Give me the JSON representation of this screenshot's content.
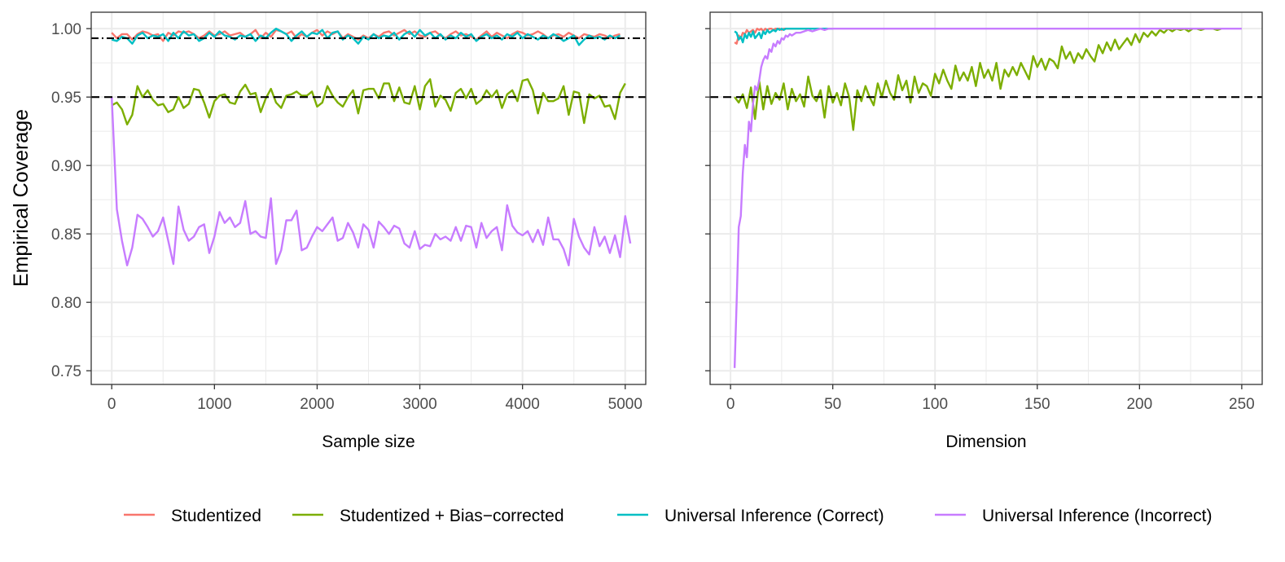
{
  "figure": {
    "ylabel": "Empirical Coverage",
    "colors": {
      "studentized": "#F8766D",
      "bias_corrected": "#7CAE00",
      "ui_correct": "#00BFC4",
      "ui_incorrect": "#C77CFF",
      "reference": "#000000",
      "grid": "#ebebeb",
      "panel_border": "#333333"
    }
  },
  "legend": {
    "position": "bottom",
    "entries": [
      {
        "key": "studentized",
        "label": "Studentized",
        "color": "#F8766D"
      },
      {
        "key": "bias_corrected",
        "label": "Studentized + Bias−corrected",
        "color": "#7CAE00"
      },
      {
        "key": "ui_correct",
        "label": "Universal Inference (Correct)",
        "color": "#00BFC4"
      },
      {
        "key": "ui_incorrect",
        "label": "Universal Inference (Incorrect)",
        "color": "#C77CFF"
      }
    ]
  },
  "chart_data": [
    {
      "type": "line",
      "xlabel": "Sample size",
      "ylabel": "Empirical Coverage",
      "xlim": [
        -200,
        5200
      ],
      "ylim": [
        0.74,
        1.012
      ],
      "xticks": [
        0,
        1000,
        2000,
        3000,
        4000,
        5000
      ],
      "yticks": [
        0.75,
        0.8,
        0.85,
        0.9,
        0.95,
        1.0
      ],
      "ytick_labels": [
        "0.75",
        "0.80",
        "0.85",
        "0.90",
        "0.95",
        "1.00"
      ],
      "grid": true,
      "reference_lines": [
        {
          "y": 0.95,
          "style": "dashed"
        },
        {
          "y": 0.993,
          "style": "dashdot"
        }
      ],
      "x_start": 0,
      "x_step": 50,
      "series": [
        {
          "key": "studentized",
          "values": [
            0.997,
            0.993,
            0.996,
            0.996,
            0.992,
            0.996,
            0.998,
            0.997,
            0.995,
            0.996,
            0.991,
            0.997,
            0.995,
            0.998,
            0.997,
            0.998,
            0.996,
            0.993,
            0.995,
            0.998,
            0.995,
            0.996,
            0.998,
            0.995,
            0.996,
            0.997,
            0.994,
            0.996,
            0.999,
            0.993,
            0.997,
            0.994,
            0.999,
            0.998,
            0.996,
            0.998,
            0.993,
            0.996,
            0.994,
            0.997,
            0.999,
            0.995,
            0.998,
            0.996,
            0.998,
            0.993,
            0.996,
            0.994,
            0.992,
            0.995,
            0.993,
            0.996,
            0.994,
            0.997,
            0.998,
            0.995,
            0.997,
            0.999,
            0.996,
            0.998,
            0.995,
            0.994,
            0.997,
            0.998,
            0.995,
            0.993,
            0.996,
            0.998,
            0.995,
            0.996,
            0.994,
            0.992,
            0.995,
            0.998,
            0.994,
            0.997,
            0.995,
            0.993,
            0.996,
            0.998,
            0.997,
            0.995,
            0.996,
            0.998,
            0.996,
            0.993,
            0.995,
            0.996,
            0.994,
            0.997,
            0.995,
            0.993,
            0.996,
            0.995,
            0.994,
            0.996,
            0.995,
            0.993,
            0.995,
            0.996
          ]
        },
        {
          "key": "bias_corrected",
          "values": [
            0.944,
            0.946,
            0.941,
            0.93,
            0.937,
            0.958,
            0.95,
            0.955,
            0.948,
            0.944,
            0.945,
            0.939,
            0.941,
            0.95,
            0.942,
            0.945,
            0.956,
            0.955,
            0.946,
            0.935,
            0.947,
            0.951,
            0.952,
            0.946,
            0.945,
            0.954,
            0.959,
            0.952,
            0.953,
            0.939,
            0.949,
            0.956,
            0.946,
            0.942,
            0.951,
            0.952,
            0.954,
            0.951,
            0.951,
            0.954,
            0.943,
            0.946,
            0.958,
            0.951,
            0.946,
            0.943,
            0.95,
            0.955,
            0.938,
            0.955,
            0.956,
            0.956,
            0.949,
            0.96,
            0.96,
            0.947,
            0.957,
            0.946,
            0.945,
            0.958,
            0.941,
            0.958,
            0.963,
            0.943,
            0.951,
            0.948,
            0.94,
            0.953,
            0.956,
            0.949,
            0.956,
            0.945,
            0.948,
            0.955,
            0.95,
            0.955,
            0.942,
            0.952,
            0.955,
            0.947,
            0.962,
            0.963,
            0.955,
            0.938,
            0.953,
            0.947,
            0.947,
            0.949,
            0.958,
            0.937,
            0.954,
            0.953,
            0.931,
            0.952,
            0.949,
            0.951,
            0.943,
            0.944,
            0.934,
            0.953,
            0.96
          ]
        },
        {
          "key": "ui_correct",
          "values": [
            0.992,
            0.991,
            0.994,
            0.993,
            0.989,
            0.995,
            0.997,
            0.993,
            0.995,
            0.994,
            0.996,
            0.991,
            0.997,
            0.993,
            0.998,
            0.995,
            0.996,
            0.991,
            0.993,
            0.997,
            0.994,
            0.998,
            0.995,
            0.994,
            0.992,
            0.995,
            0.994,
            0.996,
            0.991,
            0.995,
            0.993,
            0.997,
            1.0,
            0.998,
            0.996,
            0.991,
            0.995,
            0.998,
            0.994,
            0.997,
            0.996,
            0.999,
            0.993,
            0.997,
            0.998,
            0.992,
            0.995,
            0.993,
            0.989,
            0.994,
            0.992,
            0.996,
            0.993,
            0.995,
            0.994,
            0.997,
            0.992,
            0.996,
            0.998,
            0.994,
            0.999,
            0.995,
            0.997,
            0.993,
            0.996,
            0.992,
            0.995,
            0.993,
            0.997,
            0.994,
            0.996,
            0.991,
            0.994,
            0.996,
            0.993,
            0.995,
            0.992,
            0.996,
            0.994,
            0.997,
            0.993,
            0.996,
            0.994,
            0.992,
            0.995,
            0.993,
            0.996,
            0.994,
            0.991,
            0.993,
            0.995,
            0.988,
            0.992,
            0.995,
            0.993,
            0.994,
            0.992,
            0.995,
            0.993,
            0.995
          ]
        },
        {
          "key": "ui_incorrect",
          "values": [
            0.95,
            0.868,
            0.845,
            0.827,
            0.84,
            0.864,
            0.861,
            0.855,
            0.848,
            0.852,
            0.862,
            0.845,
            0.828,
            0.87,
            0.853,
            0.845,
            0.848,
            0.855,
            0.857,
            0.836,
            0.848,
            0.866,
            0.858,
            0.862,
            0.855,
            0.858,
            0.874,
            0.85,
            0.852,
            0.848,
            0.847,
            0.876,
            0.828,
            0.838,
            0.86,
            0.86,
            0.867,
            0.838,
            0.84,
            0.848,
            0.855,
            0.852,
            0.857,
            0.862,
            0.845,
            0.847,
            0.858,
            0.851,
            0.84,
            0.857,
            0.853,
            0.84,
            0.859,
            0.855,
            0.85,
            0.856,
            0.854,
            0.843,
            0.84,
            0.852,
            0.839,
            0.842,
            0.841,
            0.85,
            0.846,
            0.848,
            0.845,
            0.855,
            0.845,
            0.856,
            0.855,
            0.84,
            0.858,
            0.847,
            0.852,
            0.855,
            0.838,
            0.871,
            0.856,
            0.851,
            0.849,
            0.852,
            0.844,
            0.853,
            0.842,
            0.862,
            0.846,
            0.846,
            0.839,
            0.827,
            0.861,
            0.848,
            0.84,
            0.835,
            0.855,
            0.841,
            0.848,
            0.836,
            0.849,
            0.833,
            0.863,
            0.843
          ]
        }
      ]
    },
    {
      "type": "line",
      "xlabel": "Dimension",
      "ylabel": "Empirical Coverage",
      "xlim": [
        -10,
        260
      ],
      "ylim": [
        0.74,
        1.012
      ],
      "xticks": [
        0,
        50,
        100,
        150,
        200,
        250
      ],
      "yticks": [
        0.75,
        0.8,
        0.85,
        0.9,
        0.95,
        1.0
      ],
      "ytick_labels": [],
      "grid": true,
      "reference_lines": [
        {
          "y": 0.95,
          "style": "dashed"
        }
      ],
      "series": [
        {
          "key": "studentized",
          "x": [
            2,
            3,
            4,
            5,
            6,
            7,
            8,
            9,
            10,
            11,
            12,
            13,
            14,
            15,
            16,
            17,
            18,
            19,
            20,
            21,
            22,
            23,
            24,
            25,
            26,
            27,
            28,
            29,
            30,
            32,
            34,
            36,
            38,
            40
          ],
          "values": [
            0.99,
            0.989,
            0.995,
            0.993,
            0.997,
            0.996,
            0.999,
            0.997,
            0.998,
            0.999,
            0.997,
            1.0,
            0.999,
            1.0,
            0.998,
            1.0,
            0.999,
            1.0,
            1.0,
            0.999,
            1.0,
            1.0,
            1.0,
            0.999,
            1.0,
            1.0,
            1.0,
            1.0,
            1.0,
            1.0,
            1.0,
            1.0,
            1.0,
            1.0
          ]
        },
        {
          "key": "bias_corrected",
          "x": [
            2,
            4,
            6,
            8,
            10,
            12,
            14,
            16,
            18,
            20,
            22,
            24,
            26,
            28,
            30,
            32,
            34,
            36,
            38,
            40,
            42,
            44,
            46,
            48,
            50,
            52,
            54,
            56,
            58,
            60,
            62,
            64,
            66,
            68,
            70,
            72,
            74,
            76,
            78,
            80,
            82,
            84,
            86,
            88,
            90,
            92,
            94,
            96,
            98,
            100,
            102,
            104,
            106,
            108,
            110,
            112,
            114,
            116,
            118,
            120,
            122,
            124,
            126,
            128,
            130,
            132,
            134,
            136,
            138,
            140,
            142,
            144,
            146,
            148,
            150,
            152,
            154,
            156,
            158,
            160,
            162,
            164,
            166,
            168,
            170,
            172,
            174,
            176,
            178,
            180,
            182,
            184,
            186,
            188,
            190,
            192,
            194,
            196,
            198,
            200,
            202,
            204,
            206,
            208,
            210,
            212,
            214,
            216,
            218,
            220,
            222,
            224,
            226,
            228,
            230,
            232,
            234,
            236,
            238,
            240
          ],
          "values": [
            0.95,
            0.946,
            0.952,
            0.942,
            0.957,
            0.934,
            0.962,
            0.941,
            0.958,
            0.945,
            0.953,
            0.948,
            0.96,
            0.941,
            0.956,
            0.947,
            0.952,
            0.943,
            0.965,
            0.951,
            0.947,
            0.955,
            0.935,
            0.958,
            0.946,
            0.953,
            0.944,
            0.96,
            0.95,
            0.926,
            0.955,
            0.947,
            0.958,
            0.95,
            0.944,
            0.96,
            0.95,
            0.962,
            0.953,
            0.948,
            0.966,
            0.955,
            0.962,
            0.946,
            0.965,
            0.953,
            0.96,
            0.958,
            0.951,
            0.967,
            0.96,
            0.97,
            0.962,
            0.956,
            0.973,
            0.962,
            0.968,
            0.962,
            0.972,
            0.958,
            0.975,
            0.964,
            0.97,
            0.962,
            0.975,
            0.956,
            0.97,
            0.965,
            0.972,
            0.966,
            0.975,
            0.969,
            0.963,
            0.98,
            0.972,
            0.978,
            0.97,
            0.978,
            0.976,
            0.971,
            0.987,
            0.978,
            0.983,
            0.975,
            0.982,
            0.978,
            0.985,
            0.98,
            0.976,
            0.988,
            0.982,
            0.99,
            0.984,
            0.992,
            0.985,
            0.989,
            0.993,
            0.988,
            0.996,
            0.99,
            0.997,
            0.994,
            0.998,
            0.995,
            0.999,
            0.997,
            1.0,
            0.998,
            1.0,
            0.999,
            1.0,
            0.998,
            1.0,
            1.0,
            0.999,
            1.0,
            1.0,
            1.0,
            0.999,
            1.0
          ]
        },
        {
          "key": "ui_correct",
          "x": [
            2,
            3,
            4,
            5,
            6,
            7,
            8,
            9,
            10,
            11,
            12,
            13,
            14,
            15,
            16,
            17,
            18,
            19,
            20,
            21,
            22,
            23,
            24,
            25,
            26,
            27,
            28,
            30,
            32,
            34,
            36,
            38,
            40,
            45,
            50
          ],
          "values": [
            0.998,
            0.997,
            0.992,
            0.994,
            0.99,
            0.996,
            0.993,
            0.997,
            0.994,
            0.998,
            0.993,
            0.995,
            0.997,
            0.993,
            0.998,
            0.996,
            0.999,
            0.997,
            0.998,
            0.999,
            0.998,
            1.0,
            0.999,
            1.0,
            0.999,
            1.0,
            1.0,
            1.0,
            1.0,
            1.0,
            1.0,
            1.0,
            1.0,
            1.0,
            1.0
          ]
        },
        {
          "key": "ui_incorrect",
          "x": [
            2,
            3,
            4,
            5,
            6,
            7,
            8,
            9,
            10,
            11,
            12,
            13,
            14,
            15,
            16,
            17,
            18,
            19,
            20,
            21,
            22,
            23,
            24,
            25,
            26,
            27,
            28,
            29,
            30,
            32,
            34,
            36,
            38,
            40,
            42,
            44,
            46,
            48,
            50,
            60,
            80,
            100,
            150,
            200,
            250
          ],
          "values": [
            0.752,
            0.8,
            0.855,
            0.863,
            0.895,
            0.915,
            0.906,
            0.932,
            0.925,
            0.945,
            0.958,
            0.955,
            0.962,
            0.972,
            0.977,
            0.98,
            0.978,
            0.985,
            0.983,
            0.989,
            0.987,
            0.991,
            0.989,
            0.993,
            0.992,
            0.995,
            0.994,
            0.996,
            0.995,
            0.997,
            0.997,
            0.998,
            0.999,
            0.998,
            0.999,
            1.0,
            0.999,
            1.0,
            1.0,
            1.0,
            1.0,
            1.0,
            1.0,
            1.0,
            1.0
          ]
        }
      ]
    }
  ]
}
